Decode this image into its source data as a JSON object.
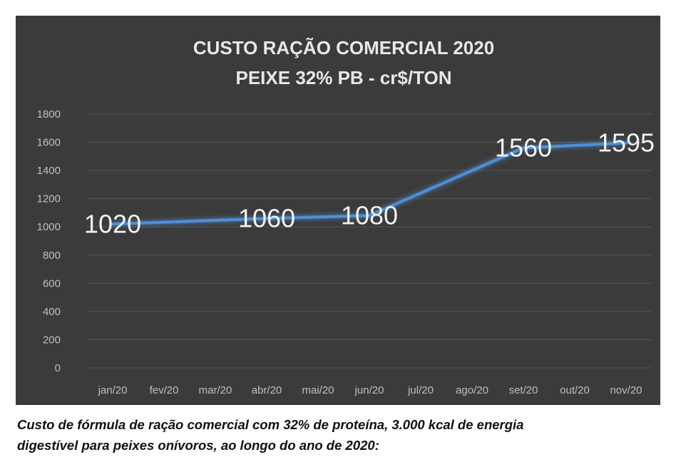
{
  "chart_data": {
    "type": "line",
    "title_lines": [
      "CUSTO RAÇÃO COMERCIAL 2020",
      "PEIXE 32% PB - cr$/TON"
    ],
    "categories": [
      "jan/20",
      "fev/20",
      "mar/20",
      "abr/20",
      "mai/20",
      "jun/20",
      "jul/20",
      "ago/20",
      "set/20",
      "out/20",
      "nov/20"
    ],
    "points": [
      {
        "category": "jan/20",
        "value": 1020
      },
      {
        "category": "abr/20",
        "value": 1060
      },
      {
        "category": "jun/20",
        "value": 1080
      },
      {
        "category": "set/20",
        "value": 1560
      },
      {
        "category": "nov/20",
        "value": 1595
      }
    ],
    "y_ticks": [
      0,
      200,
      400,
      600,
      800,
      1000,
      1200,
      1400,
      1600,
      1800
    ],
    "ylim": [
      0,
      1800
    ],
    "grid": true,
    "legend": "none",
    "line_color": "#4f8fd6",
    "background_color": "#3b3b3b"
  },
  "caption_lines": [
    "Custo de fórmula de ração comercial com 32% de proteína, 3.000 kcal de energia",
    "digestível para peixes onívoros, ao longo do ano de 2020:"
  ]
}
